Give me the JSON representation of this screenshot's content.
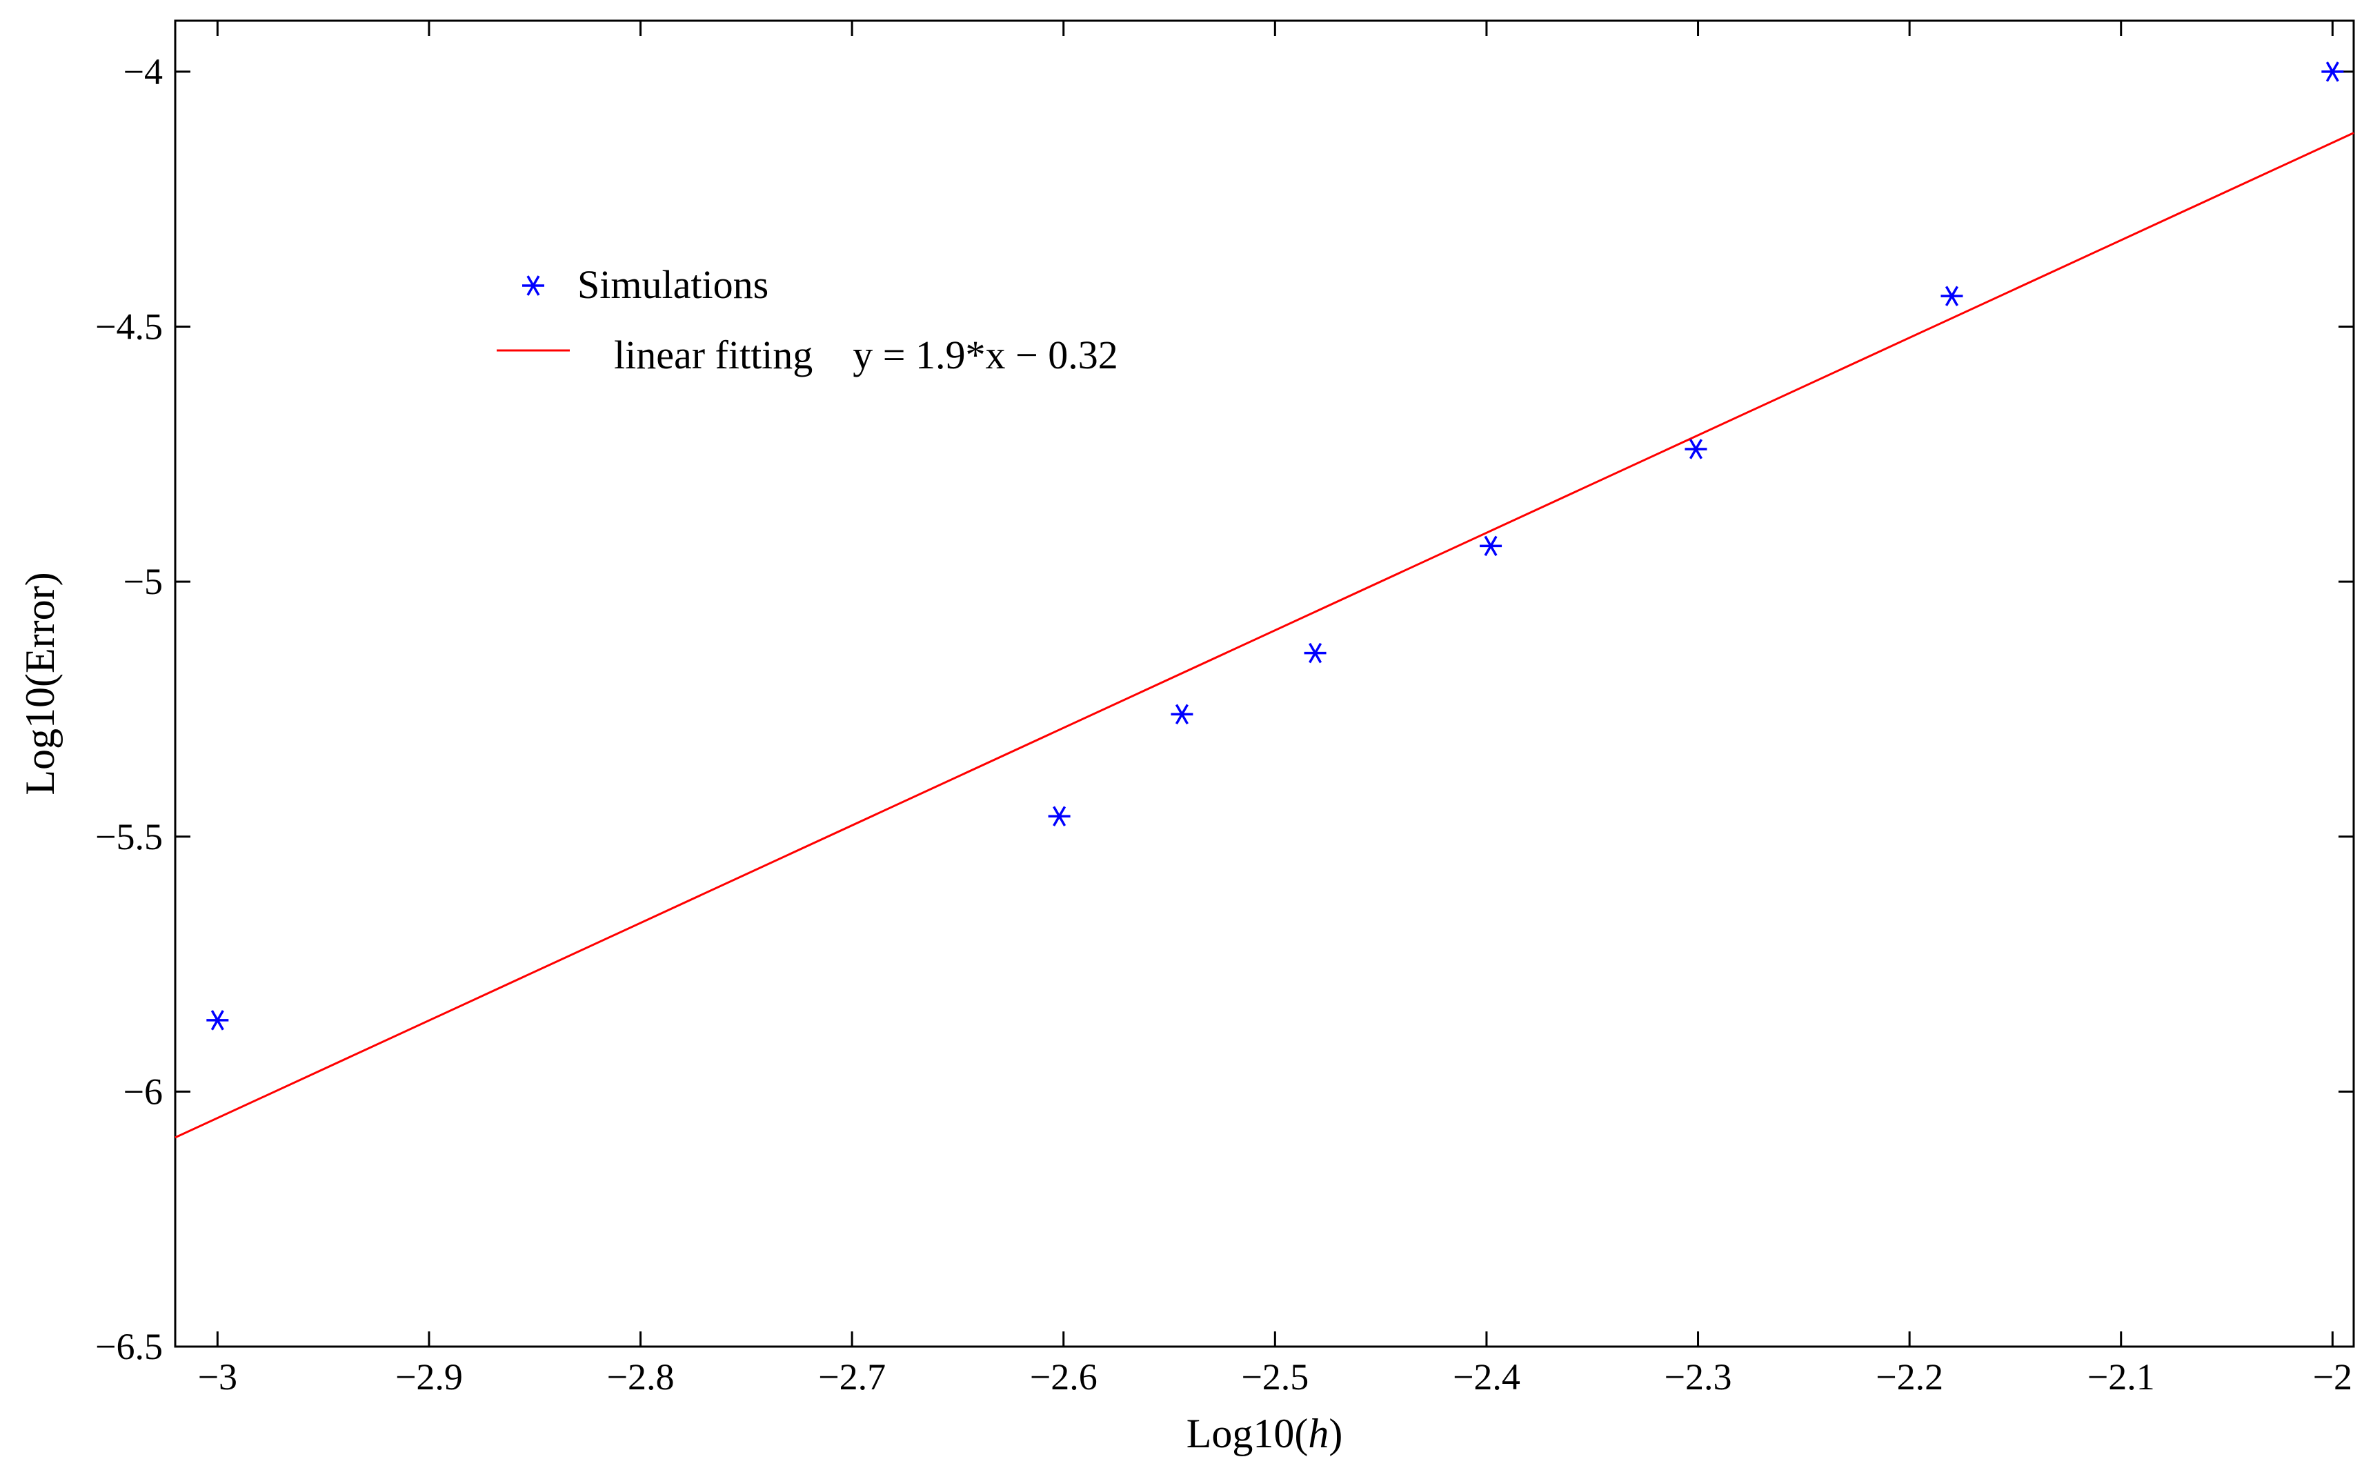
{
  "chart_data": {
    "type": "scatter",
    "xlabel_prefix": "Log10(",
    "xlabel_var": "h",
    "xlabel_suffix": ")",
    "ylabel": "Log10(Error)",
    "xlim": [
      -3.02,
      -1.99
    ],
    "ylim": [
      -6.5,
      -3.9
    ],
    "xticks": [
      -3,
      -2.9,
      -2.8,
      -2.7,
      -2.6,
      -2.5,
      -2.4,
      -2.3,
      -2.2,
      -2.1,
      -2
    ],
    "xtick_labels": [
      "−3",
      "−2.9",
      "−2.8",
      "−2.7",
      "−2.6",
      "−2.5",
      "−2.4",
      "−2.3",
      "−2.2",
      "−2.1",
      "−2"
    ],
    "yticks": [
      -4,
      -4.5,
      -5,
      -5.5,
      -6,
      -6.5
    ],
    "ytick_labels": [
      "−4",
      "−4.5",
      "−5",
      "−5.5",
      "−6",
      "−6.5"
    ],
    "grid": false,
    "legend_position": "upper-left",
    "series": [
      {
        "name": "Simulations",
        "kind": "scatter",
        "marker": "asterisk",
        "color": "#0000ff",
        "x": [
          -3.0,
          -2.602,
          -2.544,
          -2.481,
          -2.398,
          -2.301,
          -2.18,
          -2.0
        ],
        "y": [
          -5.86,
          -5.46,
          -5.26,
          -5.14,
          -4.93,
          -4.74,
          -4.44,
          -4.0
        ]
      },
      {
        "name": "linear fitting    y = 1.9*x − 0.32",
        "kind": "line",
        "color": "#ff0000",
        "x": [
          -3.02,
          -1.99
        ],
        "y": [
          -6.09,
          -4.12
        ]
      }
    ]
  }
}
